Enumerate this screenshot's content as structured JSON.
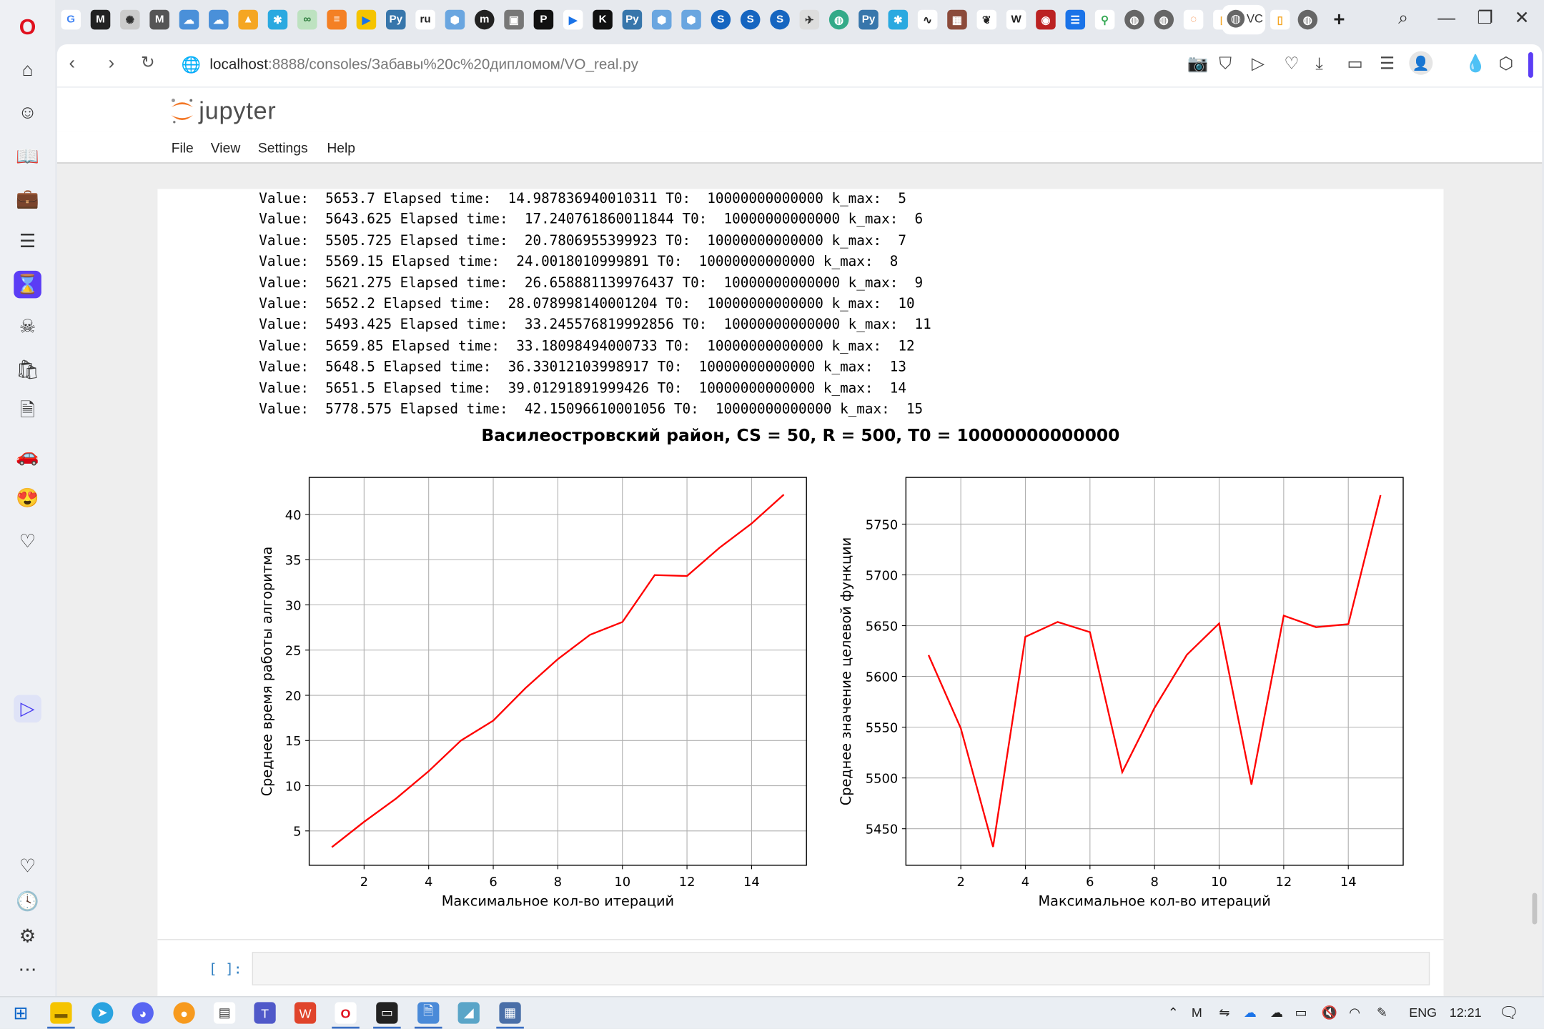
{
  "browser": {
    "url_host": "localhost",
    "url_rest": ":8888/consoles/Забавы%20с%20дипломом/VO_real.py",
    "active_tab_label": "VC"
  },
  "jupyter": {
    "logo_text": "jupyter",
    "menu": [
      "File",
      "View",
      "Settings",
      "Help"
    ]
  },
  "output_lines": [
    "Value:  5653.7 Elapsed time:  14.987836940010311 T0:  10000000000000 k_max:  5",
    "Value:  5643.625 Elapsed time:  17.240761860011844 T0:  10000000000000 k_max:  6",
    "Value:  5505.725 Elapsed time:  20.7806955399923 T0:  10000000000000 k_max:  7",
    "Value:  5569.15 Elapsed time:  24.0018010999891 T0:  10000000000000 k_max:  8",
    "Value:  5621.275 Elapsed time:  26.658881139976437 T0:  10000000000000 k_max:  9",
    "Value:  5652.2 Elapsed time:  28.078998140001204 T0:  10000000000000 k_max:  10",
    "Value:  5493.425 Elapsed time:  33.245576819992856 T0:  10000000000000 k_max:  11",
    "Value:  5659.85 Elapsed time:  33.18098494000733 T0:  10000000000000 k_max:  12",
    "Value:  5648.5 Elapsed time:  36.33012103998917 T0:  10000000000000 k_max:  13",
    "Value:  5651.5 Elapsed time:  39.01291891999426 T0:  10000000000000 k_max:  14",
    "Value:  5778.575 Elapsed time:  42.15096610001056 T0:  10000000000000 k_max:  15"
  ],
  "prompt": {
    "label": "[ ]:"
  },
  "chart_data": [
    {
      "type": "line",
      "suptitle": "Василеостровский район, CS = 50, R = 500, T0 = 10000000000000",
      "xlabel": "Максимальное кол-во итераций",
      "ylabel": "Среднее время работы алгоритма",
      "x": [
        1,
        2,
        3,
        4,
        5,
        6,
        7,
        8,
        9,
        10,
        11,
        12,
        13,
        14,
        15
      ],
      "y": [
        3.2,
        6.0,
        8.6,
        11.6,
        15.0,
        17.2,
        20.8,
        24.0,
        26.7,
        28.1,
        33.3,
        33.2,
        36.3,
        39.0,
        42.2
      ],
      "xticks": [
        2,
        4,
        6,
        8,
        10,
        12,
        14
      ],
      "yticks": [
        5,
        10,
        15,
        20,
        25,
        30,
        35,
        40
      ],
      "xlim": [
        0.3,
        15.7
      ],
      "ylim": [
        1.2,
        44.1
      ],
      "color": "#ff0000",
      "grid": true
    },
    {
      "type": "line",
      "xlabel": "Максимальное кол-во итераций",
      "ylabel": "Среднее значение целевой функции",
      "x": [
        1,
        2,
        3,
        4,
        5,
        6,
        7,
        8,
        9,
        10,
        11,
        12,
        13,
        14,
        15
      ],
      "y": [
        5621,
        5549,
        5432,
        5639,
        5653.7,
        5643.625,
        5505.725,
        5569.15,
        5621.275,
        5652.2,
        5493.425,
        5659.85,
        5648.5,
        5651.5,
        5778.575
      ],
      "xticks": [
        2,
        4,
        6,
        8,
        10,
        12,
        14
      ],
      "yticks": [
        5450,
        5500,
        5550,
        5600,
        5650,
        5700,
        5750
      ],
      "xlim": [
        0.3,
        15.7
      ],
      "ylim": [
        5414,
        5796
      ],
      "color": "#ff0000",
      "grid": true
    }
  ],
  "taskbar": {
    "language": "ENG",
    "time": "12:21"
  }
}
